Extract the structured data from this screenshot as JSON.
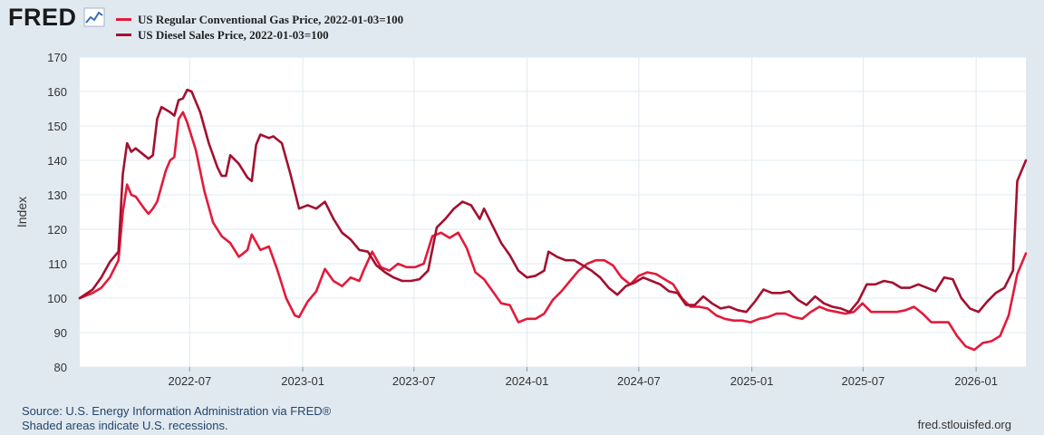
{
  "header": {
    "logo_text": "FRED",
    "logo_icon": "line-chart-icon"
  },
  "colors": {
    "background": "#e1e9f0",
    "plot_bg": "#ffffff",
    "grid": "#e1e9f0",
    "gas": "#e31a3a",
    "diesel": "#a3102f"
  },
  "chart_data": {
    "type": "line",
    "ylabel": "Index",
    "ylim": [
      80,
      170
    ],
    "yticks": [
      80,
      90,
      100,
      110,
      120,
      130,
      140,
      150,
      160,
      170
    ],
    "xlim": [
      "2022-01-03",
      "2026-03-23"
    ],
    "xticks": [
      {
        "label": "2022-07",
        "date": "2022-07-01"
      },
      {
        "label": "2023-01",
        "date": "2023-01-01"
      },
      {
        "label": "2023-07",
        "date": "2023-07-01"
      },
      {
        "label": "2024-01",
        "date": "2024-01-01"
      },
      {
        "label": "2024-07",
        "date": "2024-07-01"
      },
      {
        "label": "2025-01",
        "date": "2025-01-01"
      },
      {
        "label": "2025-07",
        "date": "2025-07-01"
      },
      {
        "label": "2026-01",
        "date": "2026-01-01"
      }
    ],
    "grid": true,
    "legend_position": "top-left",
    "series": [
      {
        "name": "US Regular Conventional Gas Price, 2022-01-03=100",
        "color": "#e31a3a",
        "points": [
          [
            "2022-01-03",
            100
          ],
          [
            "2022-01-24",
            101.5
          ],
          [
            "2022-02-07",
            103
          ],
          [
            "2022-02-21",
            106
          ],
          [
            "2022-03-07",
            111
          ],
          [
            "2022-03-14",
            125
          ],
          [
            "2022-03-21",
            133
          ],
          [
            "2022-03-28",
            130
          ],
          [
            "2022-04-04",
            129.5
          ],
          [
            "2022-04-18",
            126
          ],
          [
            "2022-04-25",
            124.5
          ],
          [
            "2022-05-02",
            126
          ],
          [
            "2022-05-09",
            128
          ],
          [
            "2022-05-23",
            137
          ],
          [
            "2022-05-30",
            140
          ],
          [
            "2022-06-06",
            141
          ],
          [
            "2022-06-13",
            152
          ],
          [
            "2022-06-20",
            154
          ],
          [
            "2022-06-27",
            151
          ],
          [
            "2022-07-11",
            143
          ],
          [
            "2022-07-25",
            131
          ],
          [
            "2022-08-08",
            122
          ],
          [
            "2022-08-22",
            118
          ],
          [
            "2022-09-05",
            116
          ],
          [
            "2022-09-19",
            112
          ],
          [
            "2022-10-03",
            114
          ],
          [
            "2022-10-10",
            118.5
          ],
          [
            "2022-10-24",
            114
          ],
          [
            "2022-11-07",
            115
          ],
          [
            "2022-11-21",
            108
          ],
          [
            "2022-12-05",
            100
          ],
          [
            "2022-12-19",
            95
          ],
          [
            "2022-12-26",
            94.5
          ],
          [
            "2023-01-09",
            99
          ],
          [
            "2023-01-23",
            102
          ],
          [
            "2023-02-06",
            108.5
          ],
          [
            "2023-02-20",
            105
          ],
          [
            "2023-03-06",
            103.5
          ],
          [
            "2023-03-20",
            106
          ],
          [
            "2023-04-03",
            105
          ],
          [
            "2023-04-10",
            108
          ],
          [
            "2023-04-24",
            113.5
          ],
          [
            "2023-05-08",
            109
          ],
          [
            "2023-05-22",
            108
          ],
          [
            "2023-06-05",
            110
          ],
          [
            "2023-06-19",
            109
          ],
          [
            "2023-07-03",
            109
          ],
          [
            "2023-07-17",
            110
          ],
          [
            "2023-07-31",
            118
          ],
          [
            "2023-08-14",
            119
          ],
          [
            "2023-08-28",
            117.5
          ],
          [
            "2023-09-11",
            119
          ],
          [
            "2023-09-25",
            114.5
          ],
          [
            "2023-10-09",
            107.5
          ],
          [
            "2023-10-23",
            105.5
          ],
          [
            "2023-11-06",
            102
          ],
          [
            "2023-11-20",
            98.5
          ],
          [
            "2023-12-04",
            98
          ],
          [
            "2023-12-18",
            93
          ],
          [
            "2024-01-01",
            94
          ],
          [
            "2024-01-15",
            94
          ],
          [
            "2024-01-29",
            95.5
          ],
          [
            "2024-02-12",
            99.5
          ],
          [
            "2024-02-26",
            102
          ],
          [
            "2024-03-11",
            105
          ],
          [
            "2024-03-25",
            108
          ],
          [
            "2024-04-08",
            110
          ],
          [
            "2024-04-22",
            111
          ],
          [
            "2024-05-06",
            111
          ],
          [
            "2024-05-20",
            109.5
          ],
          [
            "2024-06-03",
            106
          ],
          [
            "2024-06-17",
            104
          ],
          [
            "2024-07-01",
            106.5
          ],
          [
            "2024-07-15",
            107.5
          ],
          [
            "2024-07-29",
            107
          ],
          [
            "2024-08-12",
            105.5
          ],
          [
            "2024-08-26",
            104
          ],
          [
            "2024-09-09",
            100
          ],
          [
            "2024-09-23",
            97.5
          ],
          [
            "2024-10-07",
            97.5
          ],
          [
            "2024-10-21",
            97
          ],
          [
            "2024-11-04",
            95
          ],
          [
            "2024-11-18",
            94
          ],
          [
            "2024-12-02",
            93.5
          ],
          [
            "2024-12-16",
            93.5
          ],
          [
            "2024-12-30",
            93
          ],
          [
            "2025-01-13",
            94
          ],
          [
            "2025-01-27",
            94.5
          ],
          [
            "2025-02-10",
            95.5
          ],
          [
            "2025-02-24",
            95.5
          ],
          [
            "2025-03-10",
            94.5
          ],
          [
            "2025-03-24",
            94
          ],
          [
            "2025-04-07",
            96
          ],
          [
            "2025-04-21",
            97.5
          ],
          [
            "2025-05-05",
            96.5
          ],
          [
            "2025-05-19",
            96
          ],
          [
            "2025-06-02",
            95.5
          ],
          [
            "2025-06-16",
            96
          ],
          [
            "2025-06-30",
            98.5
          ],
          [
            "2025-07-14",
            96
          ],
          [
            "2025-07-28",
            96
          ],
          [
            "2025-08-11",
            96
          ],
          [
            "2025-08-25",
            96
          ],
          [
            "2025-09-08",
            96.5
          ],
          [
            "2025-09-22",
            97.5
          ],
          [
            "2025-10-06",
            95.5
          ],
          [
            "2025-10-20",
            93
          ],
          [
            "2025-11-03",
            93
          ],
          [
            "2025-11-17",
            93
          ],
          [
            "2025-12-01",
            89
          ],
          [
            "2025-12-15",
            86
          ],
          [
            "2025-12-29",
            85
          ],
          [
            "2026-01-12",
            87
          ],
          [
            "2026-01-26",
            87.5
          ],
          [
            "2026-02-09",
            89
          ],
          [
            "2026-02-23",
            95
          ],
          [
            "2026-03-09",
            107
          ],
          [
            "2026-03-23",
            113
          ]
        ]
      },
      {
        "name": "US Diesel Sales Price, 2022-01-03=100",
        "color": "#a3102f",
        "points": [
          [
            "2022-01-03",
            100
          ],
          [
            "2022-01-24",
            102.5
          ],
          [
            "2022-02-07",
            106
          ],
          [
            "2022-02-21",
            110.5
          ],
          [
            "2022-03-07",
            113.5
          ],
          [
            "2022-03-14",
            136
          ],
          [
            "2022-03-21",
            145
          ],
          [
            "2022-03-28",
            142.5
          ],
          [
            "2022-04-04",
            143.5
          ],
          [
            "2022-04-18",
            141.5
          ],
          [
            "2022-04-25",
            140.5
          ],
          [
            "2022-05-02",
            141.5
          ],
          [
            "2022-05-09",
            152
          ],
          [
            "2022-05-16",
            155.5
          ],
          [
            "2022-05-30",
            154
          ],
          [
            "2022-06-06",
            153
          ],
          [
            "2022-06-13",
            157.5
          ],
          [
            "2022-06-20",
            158
          ],
          [
            "2022-06-27",
            160.5
          ],
          [
            "2022-07-04",
            160
          ],
          [
            "2022-07-18",
            154
          ],
          [
            "2022-08-01",
            145
          ],
          [
            "2022-08-15",
            138
          ],
          [
            "2022-08-22",
            135.5
          ],
          [
            "2022-08-29",
            135.5
          ],
          [
            "2022-09-05",
            141.5
          ],
          [
            "2022-09-19",
            139
          ],
          [
            "2022-10-03",
            135
          ],
          [
            "2022-10-10",
            134
          ],
          [
            "2022-10-17",
            144.5
          ],
          [
            "2022-10-24",
            147.5
          ],
          [
            "2022-11-07",
            146.5
          ],
          [
            "2022-11-14",
            147
          ],
          [
            "2022-11-28",
            145
          ],
          [
            "2022-12-12",
            136
          ],
          [
            "2022-12-26",
            126
          ],
          [
            "2023-01-09",
            127
          ],
          [
            "2023-01-23",
            126
          ],
          [
            "2023-02-06",
            128
          ],
          [
            "2023-02-20",
            123
          ],
          [
            "2023-03-06",
            119
          ],
          [
            "2023-03-20",
            117
          ],
          [
            "2023-04-03",
            114
          ],
          [
            "2023-04-17",
            113.5
          ],
          [
            "2023-05-01",
            109.5
          ],
          [
            "2023-05-15",
            107.5
          ],
          [
            "2023-05-29",
            106
          ],
          [
            "2023-06-12",
            105
          ],
          [
            "2023-06-26",
            105
          ],
          [
            "2023-07-10",
            105.5
          ],
          [
            "2023-07-24",
            108
          ],
          [
            "2023-08-07",
            120.5
          ],
          [
            "2023-08-21",
            123
          ],
          [
            "2023-09-04",
            126
          ],
          [
            "2023-09-18",
            128
          ],
          [
            "2023-10-02",
            127
          ],
          [
            "2023-10-16",
            123
          ],
          [
            "2023-10-23",
            126
          ],
          [
            "2023-11-06",
            121
          ],
          [
            "2023-11-20",
            116
          ],
          [
            "2023-12-04",
            112.5
          ],
          [
            "2023-12-18",
            108
          ],
          [
            "2024-01-01",
            106
          ],
          [
            "2024-01-15",
            106.5
          ],
          [
            "2024-01-29",
            108
          ],
          [
            "2024-02-05",
            113.5
          ],
          [
            "2024-02-19",
            112
          ],
          [
            "2024-03-04",
            111
          ],
          [
            "2024-03-18",
            111
          ],
          [
            "2024-04-01",
            109.5
          ],
          [
            "2024-04-15",
            108
          ],
          [
            "2024-04-29",
            106
          ],
          [
            "2024-05-13",
            103
          ],
          [
            "2024-05-27",
            101
          ],
          [
            "2024-06-10",
            103.5
          ],
          [
            "2024-06-24",
            104.5
          ],
          [
            "2024-07-08",
            106
          ],
          [
            "2024-07-22",
            105
          ],
          [
            "2024-08-05",
            104
          ],
          [
            "2024-08-19",
            102
          ],
          [
            "2024-09-02",
            101.5
          ],
          [
            "2024-09-16",
            98
          ],
          [
            "2024-09-30",
            98
          ],
          [
            "2024-10-14",
            100.5
          ],
          [
            "2024-10-28",
            98.5
          ],
          [
            "2024-11-11",
            97
          ],
          [
            "2024-11-25",
            97.5
          ],
          [
            "2024-12-09",
            96.5
          ],
          [
            "2024-12-23",
            96
          ],
          [
            "2025-01-06",
            99
          ],
          [
            "2025-01-20",
            102.5
          ],
          [
            "2025-02-03",
            101.5
          ],
          [
            "2025-02-17",
            101.5
          ],
          [
            "2025-03-03",
            102
          ],
          [
            "2025-03-17",
            99.5
          ],
          [
            "2025-03-31",
            98
          ],
          [
            "2025-04-14",
            100.5
          ],
          [
            "2025-04-28",
            98.5
          ],
          [
            "2025-05-12",
            97.5
          ],
          [
            "2025-05-26",
            97
          ],
          [
            "2025-06-09",
            96
          ],
          [
            "2025-06-23",
            99
          ],
          [
            "2025-07-07",
            104
          ],
          [
            "2025-07-21",
            104
          ],
          [
            "2025-08-04",
            105
          ],
          [
            "2025-08-18",
            104.5
          ],
          [
            "2025-09-01",
            103
          ],
          [
            "2025-09-15",
            103
          ],
          [
            "2025-09-29",
            104
          ],
          [
            "2025-10-13",
            103
          ],
          [
            "2025-10-27",
            102
          ],
          [
            "2025-11-10",
            106
          ],
          [
            "2025-11-24",
            105.5
          ],
          [
            "2025-12-08",
            100
          ],
          [
            "2025-12-22",
            97
          ],
          [
            "2026-01-05",
            96
          ],
          [
            "2026-01-19",
            99
          ],
          [
            "2026-02-02",
            101.5
          ],
          [
            "2026-02-16",
            103
          ],
          [
            "2026-03-02",
            108
          ],
          [
            "2026-03-09",
            134
          ],
          [
            "2026-03-23",
            140
          ]
        ]
      }
    ]
  },
  "footer": {
    "source": "Source: U.S. Energy Information Administration via FRED®",
    "recessions": "Shaded areas indicate U.S. recessions.",
    "url": "fred.stlouisfed.org"
  }
}
